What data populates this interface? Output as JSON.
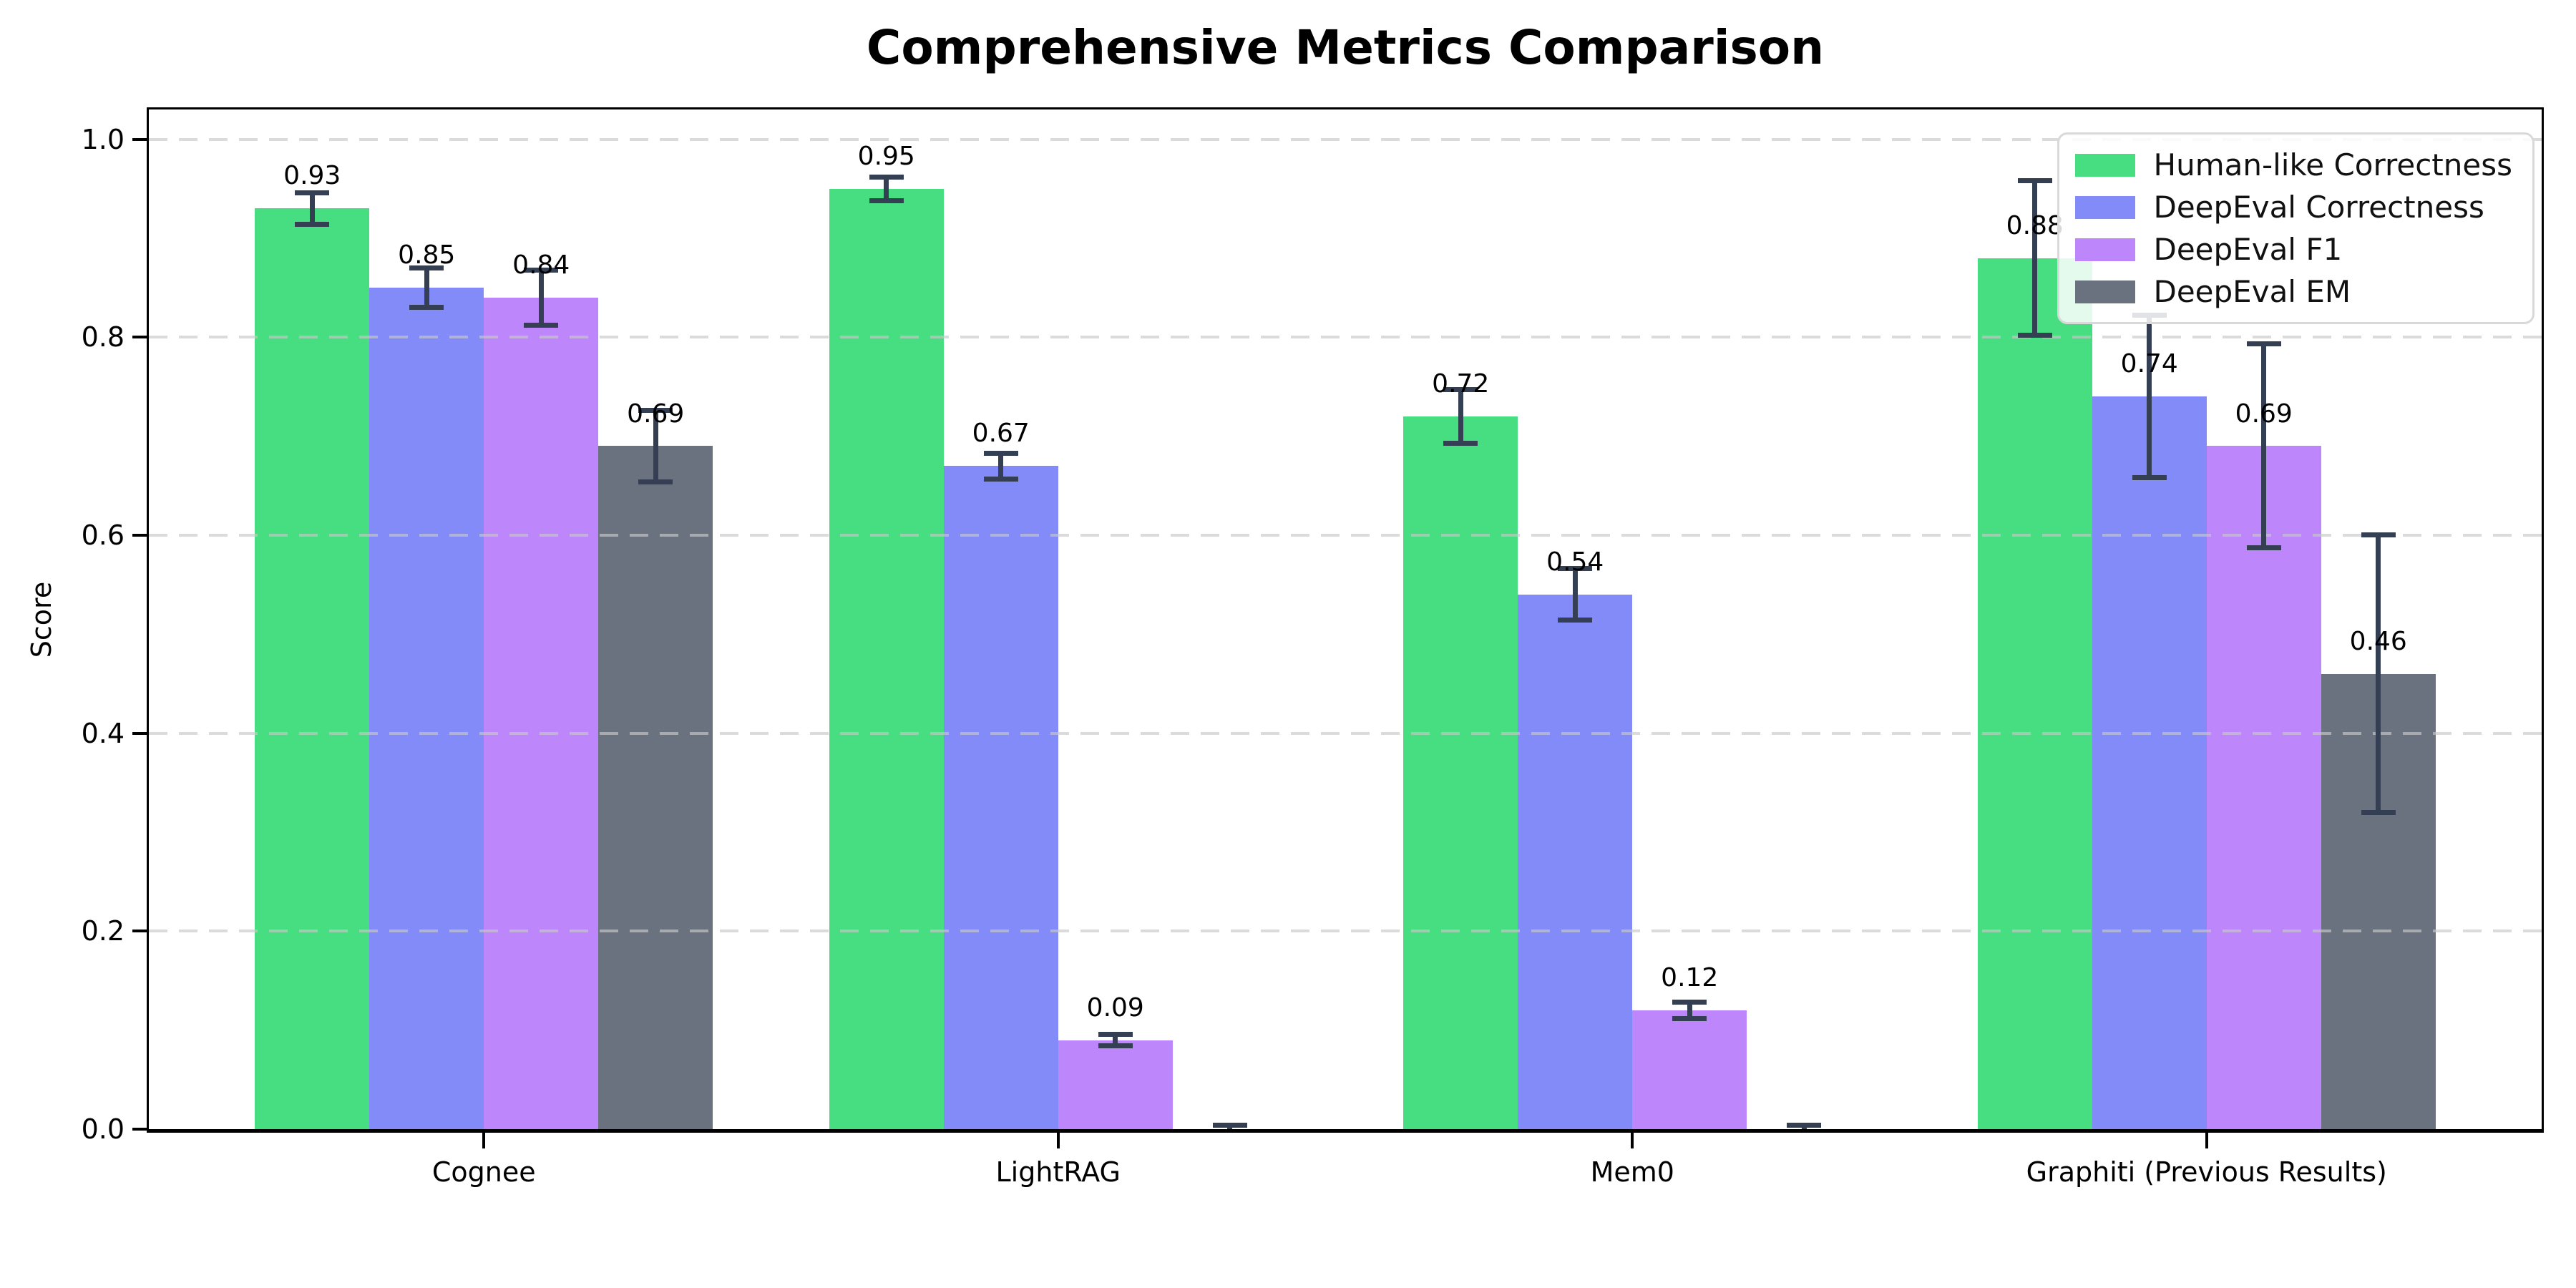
{
  "title": "Comprehensive Metrics Comparison",
  "chart_data": {
    "type": "bar",
    "title": "Comprehensive Metrics Comparison",
    "xlabel": "",
    "ylabel": "Score",
    "categories": [
      "Cognee",
      "LightRAG",
      "Mem0",
      "Graphiti (Previous Results)"
    ],
    "yticks": [
      "0.0",
      "0.2",
      "0.4",
      "0.6",
      "0.8",
      "1.0"
    ],
    "ylim": [
      0,
      1.03
    ],
    "grid": "horizontal-dashed",
    "legend_position": "upper right",
    "error_bar_color": "#353f54",
    "series": [
      {
        "name": "Human-like Correctness",
        "color": "#47dd81",
        "values": [
          0.93,
          0.95,
          0.72,
          0.88
        ],
        "errors": [
          0.016,
          0.012,
          0.027,
          0.078
        ],
        "labels": [
          "0.93",
          "0.95",
          "0.72",
          "0.88"
        ]
      },
      {
        "name": "DeepEval Correctness",
        "color": "#828bf8",
        "values": [
          0.85,
          0.67,
          0.54,
          0.74
        ],
        "errors": [
          0.02,
          0.013,
          0.026,
          0.082
        ],
        "labels": [
          "0.85",
          "0.67",
          "0.54",
          "0.74"
        ]
      },
      {
        "name": "DeepEval F1",
        "color": "#bd87fb",
        "values": [
          0.84,
          0.09,
          0.12,
          0.69
        ],
        "errors": [
          0.028,
          0.006,
          0.008,
          0.103
        ],
        "labels": [
          "0.84",
          "0.09",
          "0.12",
          "0.69"
        ]
      },
      {
        "name": "DeepEval EM",
        "color": "#6a7280",
        "values": [
          0.69,
          0.0,
          0.0,
          0.46
        ],
        "errors": [
          0.036,
          0.004,
          0.004,
          0.14
        ],
        "labels": [
          "0.69",
          "",
          "",
          "0.46"
        ]
      }
    ]
  }
}
